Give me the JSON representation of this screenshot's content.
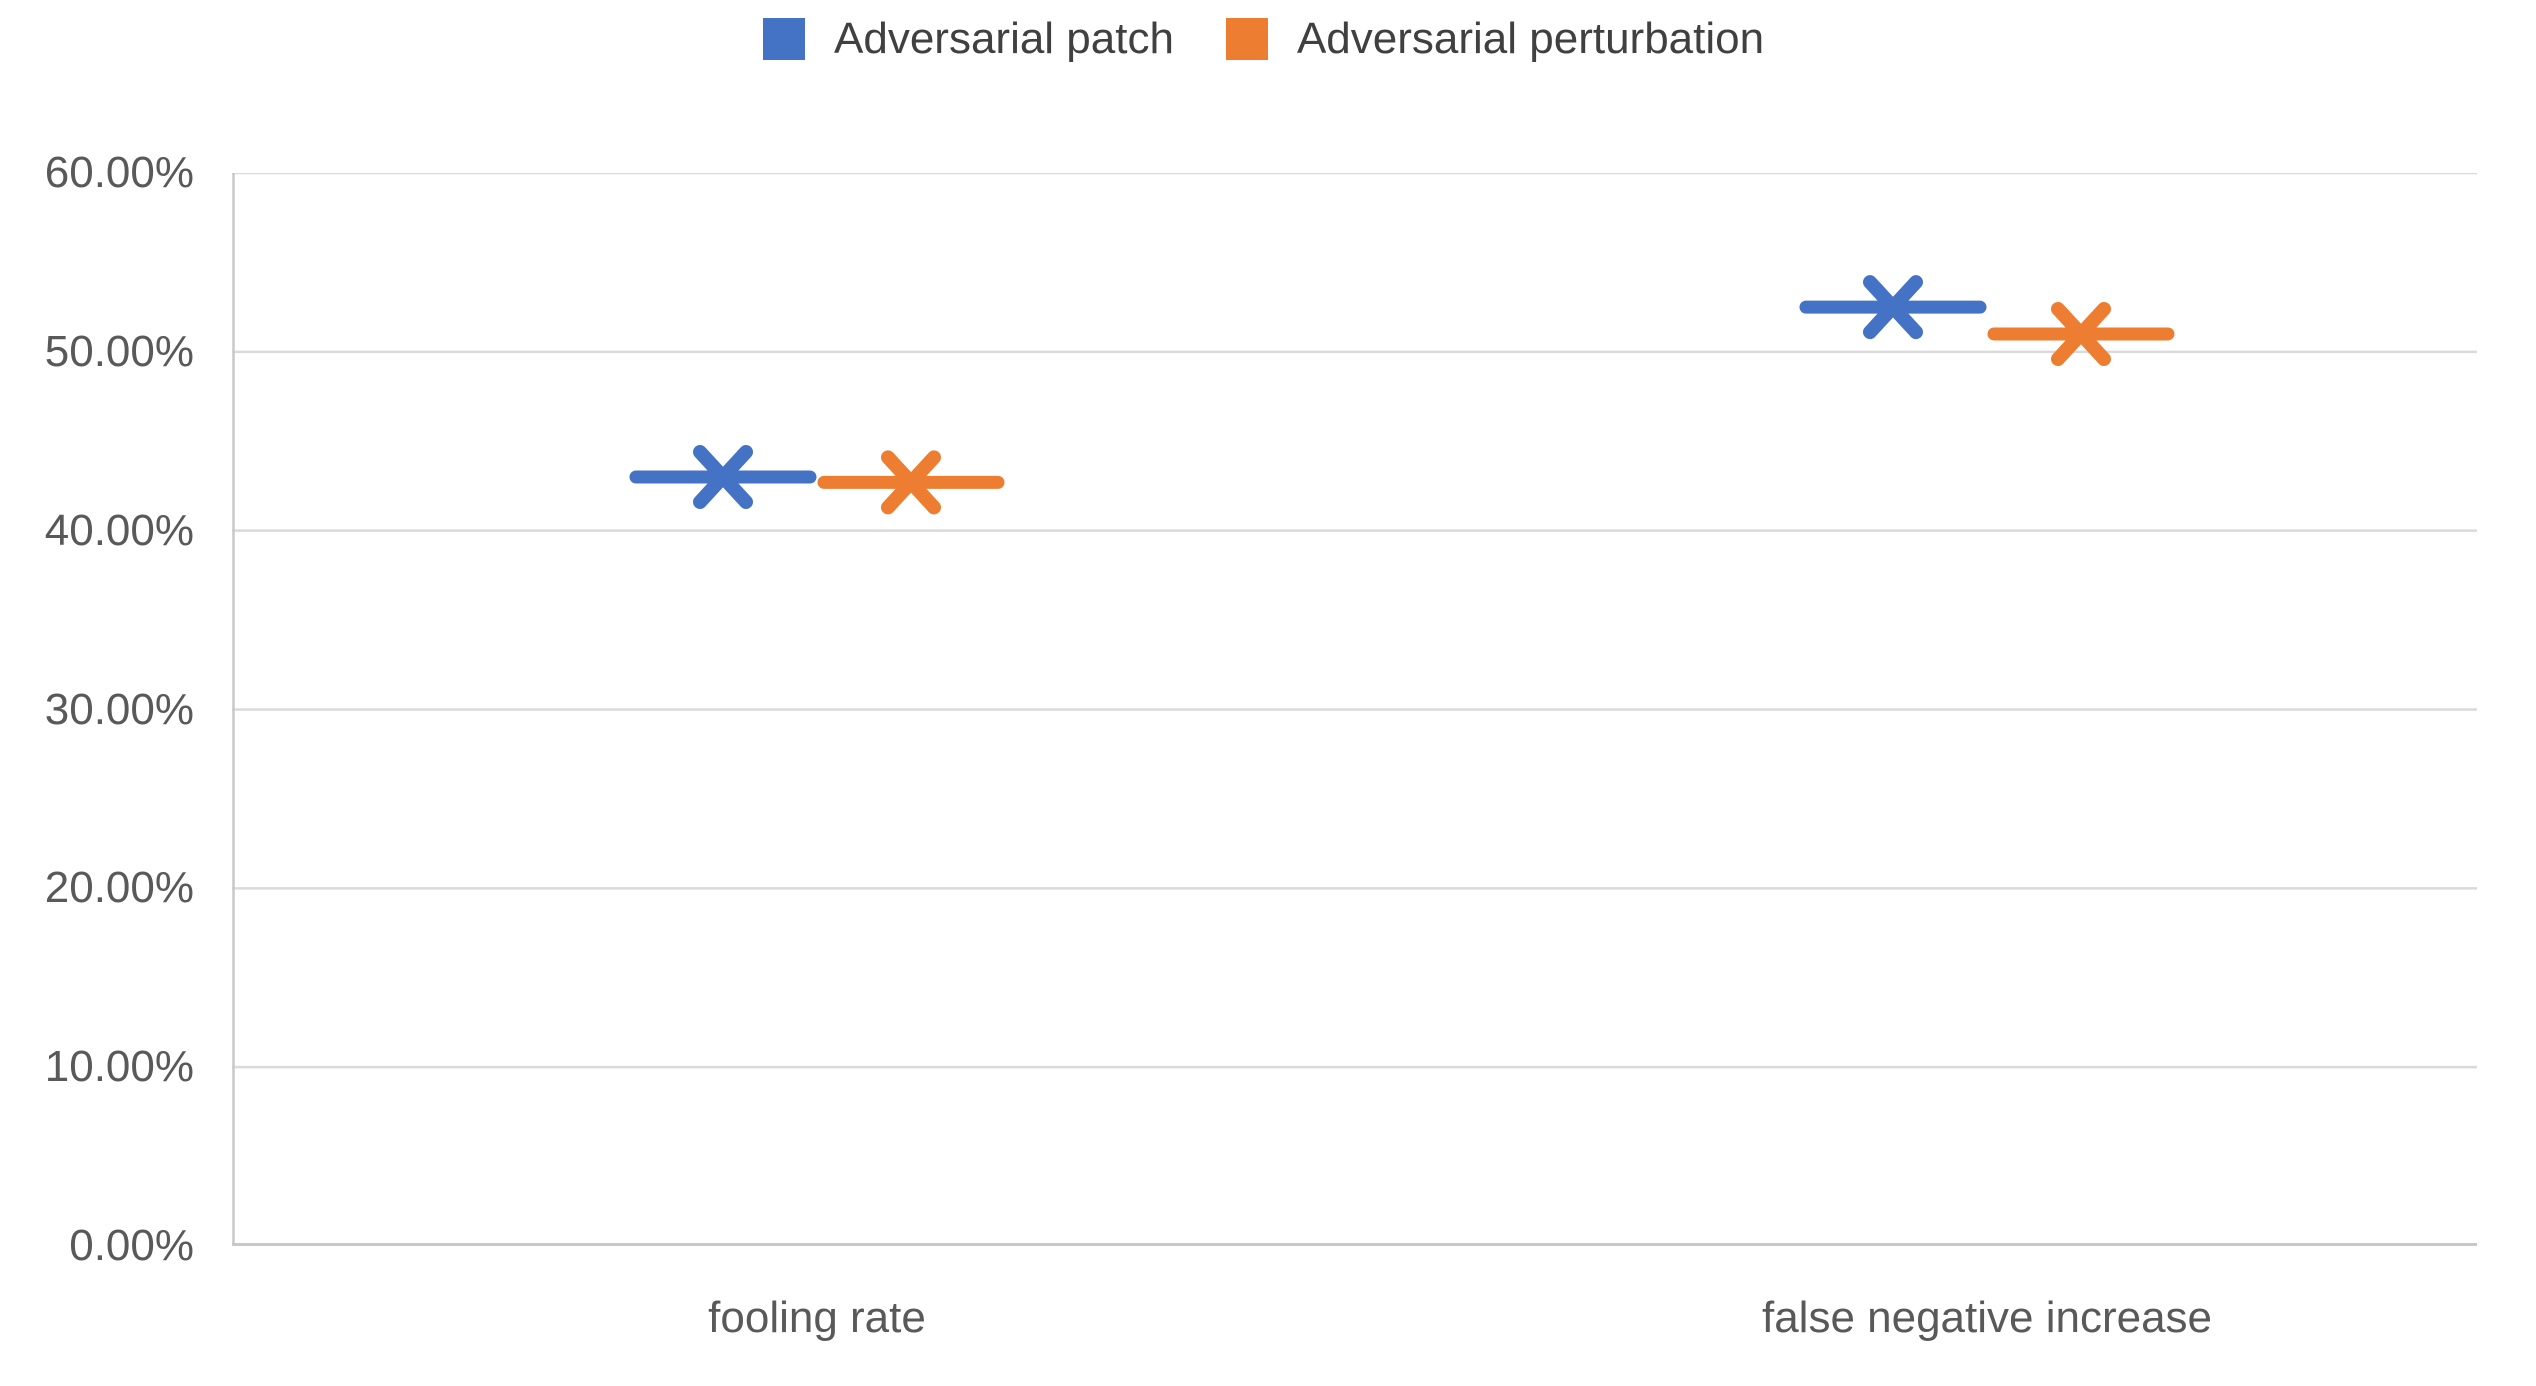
{
  "chart_data": {
    "type": "line",
    "marker_style": "x",
    "title": "",
    "xlabel": "",
    "ylabel": "",
    "categories": [
      "fooling rate",
      "false negative increase"
    ],
    "series": [
      {
        "name": "Adversarial patch",
        "color": "#4472C4",
        "values": [
          43.0,
          52.5
        ]
      },
      {
        "name": "Adversarial perturbation",
        "color": "#ED7D31",
        "values": [
          42.7,
          51.0
        ]
      }
    ],
    "ylim": [
      0,
      60
    ],
    "y_axis": {
      "ticks": [
        {
          "value": 0,
          "label": "0.00%"
        },
        {
          "value": 10,
          "label": "10.00%"
        },
        {
          "value": 20,
          "label": "20.00%"
        },
        {
          "value": 30,
          "label": "30.00%"
        },
        {
          "value": 40,
          "label": "40.00%"
        },
        {
          "value": 50,
          "label": "50.00%"
        },
        {
          "value": 60,
          "label": "60.00%"
        }
      ]
    },
    "grid": "horizontal",
    "legend_position": "top-center",
    "colors": {
      "background": "#FFFFFF",
      "gridline": "#DADADA",
      "axis_line": "#C8C8C8",
      "tick_label": "#595959",
      "category_label": "#595959",
      "legend_text": "#404040"
    }
  }
}
